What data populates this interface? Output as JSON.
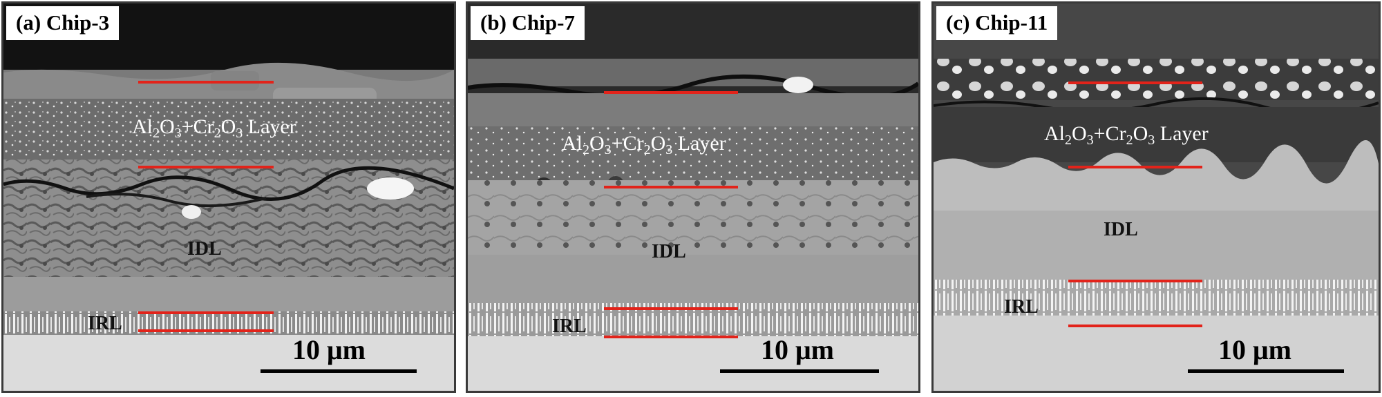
{
  "colors": {
    "interface_line": "#e2231a",
    "scale_bar": "#000000"
  },
  "panels": [
    {
      "label": "(a) Chip-3",
      "oxide_layer": {
        "a": "Al",
        "b": "O",
        "c": "+Cr",
        "d": "O",
        "e": " Layer",
        "n1": "2",
        "n2": "3",
        "n3": "2",
        "n4": "3"
      },
      "idl": "IDL",
      "irl": "IRL",
      "scale": "10 μm"
    },
    {
      "label": "(b) Chip-7",
      "oxide_layer": {
        "a": "Al",
        "b": "O",
        "c": "+Cr",
        "d": "O",
        "e": " Layer",
        "n1": "2",
        "n2": "3",
        "n3": "2",
        "n4": "3"
      },
      "idl": "IDL",
      "irl": "IRL",
      "scale": "10 μm"
    },
    {
      "label": "(c) Chip-11",
      "oxide_layer": {
        "a": "Al",
        "b": "O",
        "c": "+Cr",
        "d": "O",
        "e": " Layer",
        "n1": "2",
        "n2": "3",
        "n3": "2",
        "n4": "3"
      },
      "idl": "IDL",
      "irl": "IRL",
      "scale": "10 μm"
    }
  ]
}
